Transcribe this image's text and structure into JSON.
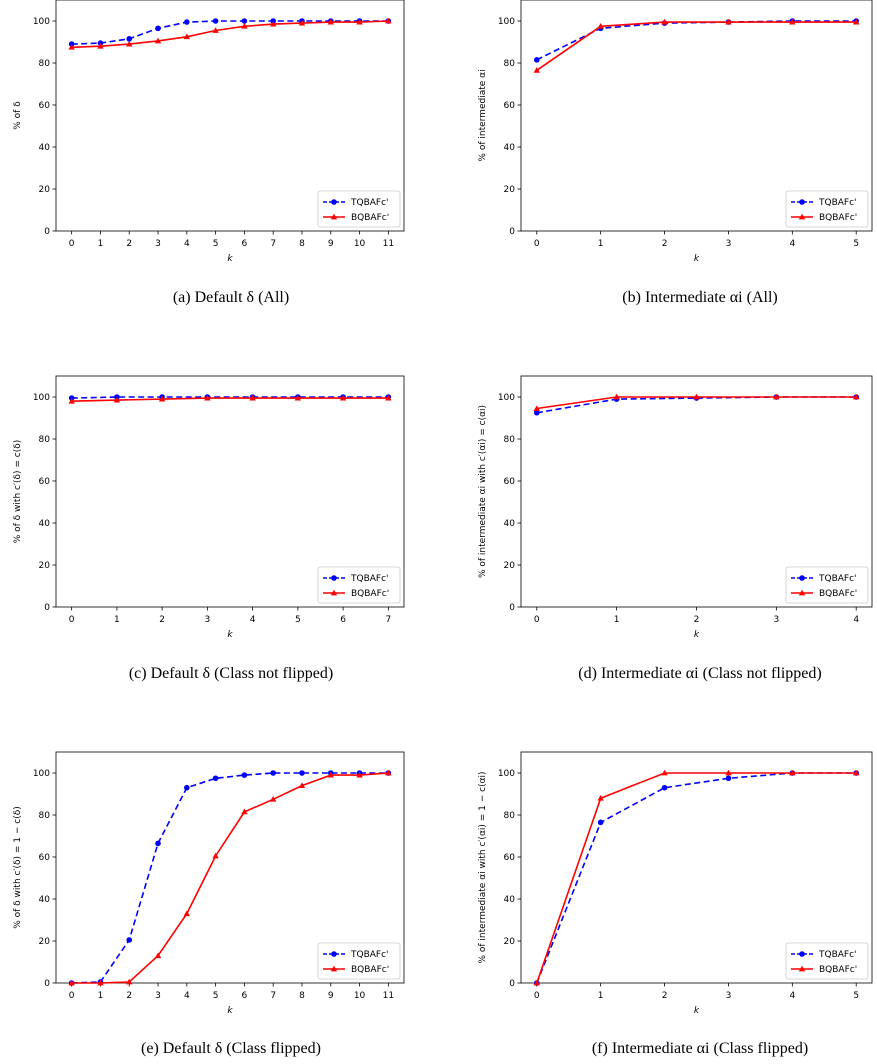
{
  "colors": {
    "tqbafc": "#0000ff",
    "bqbafc": "#ff0000"
  },
  "legend_labels": [
    "TQBAFc'",
    "BQBAFc'"
  ],
  "chart_data": [
    {
      "type": "line",
      "xlabel": "k",
      "ylabel": "% of δ",
      "caption": "(a) Default δ (All)",
      "x": [
        0,
        1,
        2,
        3,
        4,
        5,
        6,
        7,
        8,
        9,
        10,
        11
      ],
      "ylim": [
        0,
        110
      ],
      "yticks": [
        0,
        20,
        40,
        60,
        80,
        100
      ],
      "legend": "bottom-right",
      "series": [
        {
          "name": "TQBAFc'",
          "values": [
            89,
            89.5,
            91.5,
            96.5,
            99.5,
            100,
            100,
            100,
            100,
            100,
            100,
            100
          ]
        },
        {
          "name": "BQBAFc'",
          "values": [
            87.5,
            88,
            89,
            90.5,
            92.5,
            95.5,
            97.5,
            98.5,
            99,
            99.5,
            99.5,
            100
          ]
        }
      ]
    },
    {
      "type": "line",
      "xlabel": "k",
      "ylabel": "% of intermediate αi",
      "caption": "(b) Intermediate αi (All)",
      "x": [
        0,
        1,
        2,
        3,
        4,
        5
      ],
      "ylim": [
        0,
        110
      ],
      "yticks": [
        0,
        20,
        40,
        60,
        80,
        100
      ],
      "legend": "bottom-right",
      "series": [
        {
          "name": "TQBAFc'",
          "values": [
            81.5,
            96.5,
            99,
            99.5,
            100,
            100
          ]
        },
        {
          "name": "BQBAFc'",
          "values": [
            76.5,
            97.5,
            99.5,
            99.5,
            99.5,
            99.5
          ]
        }
      ]
    },
    {
      "type": "line",
      "xlabel": "k",
      "ylabel": "% of δ with c′(δ) = c(δ)",
      "caption": "(c) Default δ (Class not flipped)",
      "x": [
        0,
        1,
        2,
        3,
        4,
        5,
        6,
        7
      ],
      "ylim": [
        0,
        110
      ],
      "yticks": [
        0,
        20,
        40,
        60,
        80,
        100
      ],
      "legend": "bottom-right",
      "series": [
        {
          "name": "TQBAFc'",
          "values": [
            99.5,
            100,
            100,
            100,
            100,
            100,
            100,
            100
          ]
        },
        {
          "name": "BQBAFc'",
          "values": [
            98,
            98.5,
            99,
            99.5,
            99.5,
            99.5,
            99.5,
            99.5
          ]
        }
      ]
    },
    {
      "type": "line",
      "xlabel": "k",
      "ylabel": "% of intermediate αi with c′(αi) = c(αi)",
      "caption": "(d) Intermediate αi (Class not flipped)",
      "x": [
        0,
        1,
        2,
        3,
        4
      ],
      "ylim": [
        0,
        110
      ],
      "yticks": [
        0,
        20,
        40,
        60,
        80,
        100
      ],
      "legend": "bottom-right",
      "series": [
        {
          "name": "TQBAFc'",
          "values": [
            92.5,
            99,
            99.5,
            100,
            100
          ]
        },
        {
          "name": "BQBAFc'",
          "values": [
            94.5,
            100,
            100,
            100,
            100
          ]
        }
      ]
    },
    {
      "type": "line",
      "xlabel": "k",
      "ylabel": "% of δ with c′(δ) = 1 − c(δ)",
      "caption": "(e) Default δ (Class flipped)",
      "x": [
        0,
        1,
        2,
        3,
        4,
        5,
        6,
        7,
        8,
        9,
        10,
        11
      ],
      "ylim": [
        0,
        110
      ],
      "yticks": [
        0,
        20,
        40,
        60,
        80,
        100
      ],
      "legend": "bottom-right",
      "series": [
        {
          "name": "TQBAFc'",
          "values": [
            0,
            0.5,
            20.5,
            66.5,
            93,
            97.5,
            99,
            100,
            100,
            100,
            100,
            100
          ]
        },
        {
          "name": "BQBAFc'",
          "values": [
            0,
            0,
            0.5,
            13,
            33,
            60.5,
            81.5,
            87.5,
            94,
            99,
            99,
            100
          ]
        }
      ]
    },
    {
      "type": "line",
      "xlabel": "k",
      "ylabel": "% of intermediate αi with c′(αi) = 1 − c(αi)",
      "caption": "(f) Intermediate αi (Class flipped)",
      "x": [
        0,
        1,
        2,
        3,
        4,
        5
      ],
      "ylim": [
        0,
        110
      ],
      "yticks": [
        0,
        20,
        40,
        60,
        80,
        100
      ],
      "legend": "bottom-right",
      "series": [
        {
          "name": "TQBAFc'",
          "values": [
            0,
            76.5,
            93,
            97.5,
            100,
            100
          ]
        },
        {
          "name": "BQBAFc'",
          "values": [
            0,
            88,
            100,
            100,
            100,
            100
          ]
        }
      ]
    }
  ]
}
